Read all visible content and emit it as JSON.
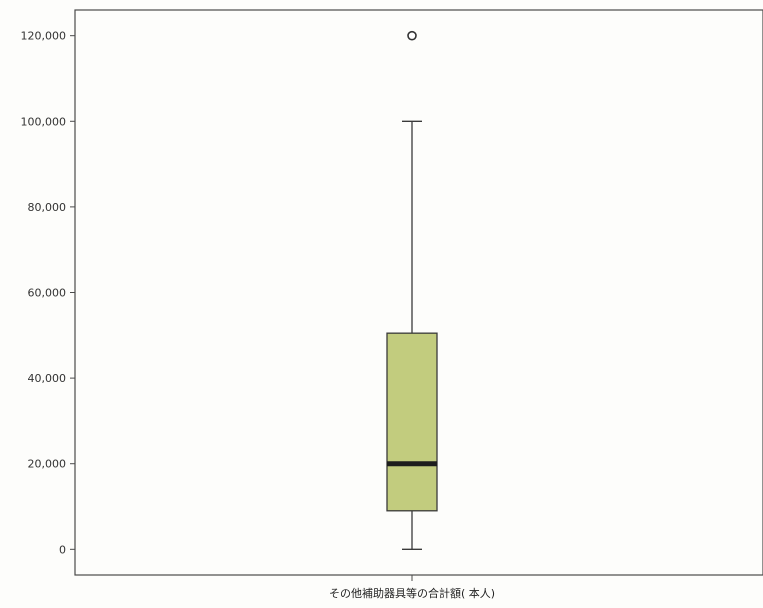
{
  "chart_data": {
    "type": "box",
    "categories": [
      "その他補助器具等の合計額( 本人)"
    ],
    "series": [
      {
        "min": 0,
        "q1": 9000,
        "median": 20000,
        "q3": 50500,
        "max": 100000,
        "outliers": [
          120000
        ]
      }
    ],
    "y_ticks": [
      "0",
      "20,000",
      "40,000",
      "60,000",
      "80,000",
      "100,000",
      "120,000"
    ],
    "ylim": [
      -6000,
      126000
    ],
    "grid": false,
    "colors": {
      "box_fill": "#c2cc7e",
      "box_stroke": "#3a3a3a",
      "median": "#1d1d1d",
      "axis": "#4a4a4a",
      "outlier_stroke": "#333333"
    }
  }
}
